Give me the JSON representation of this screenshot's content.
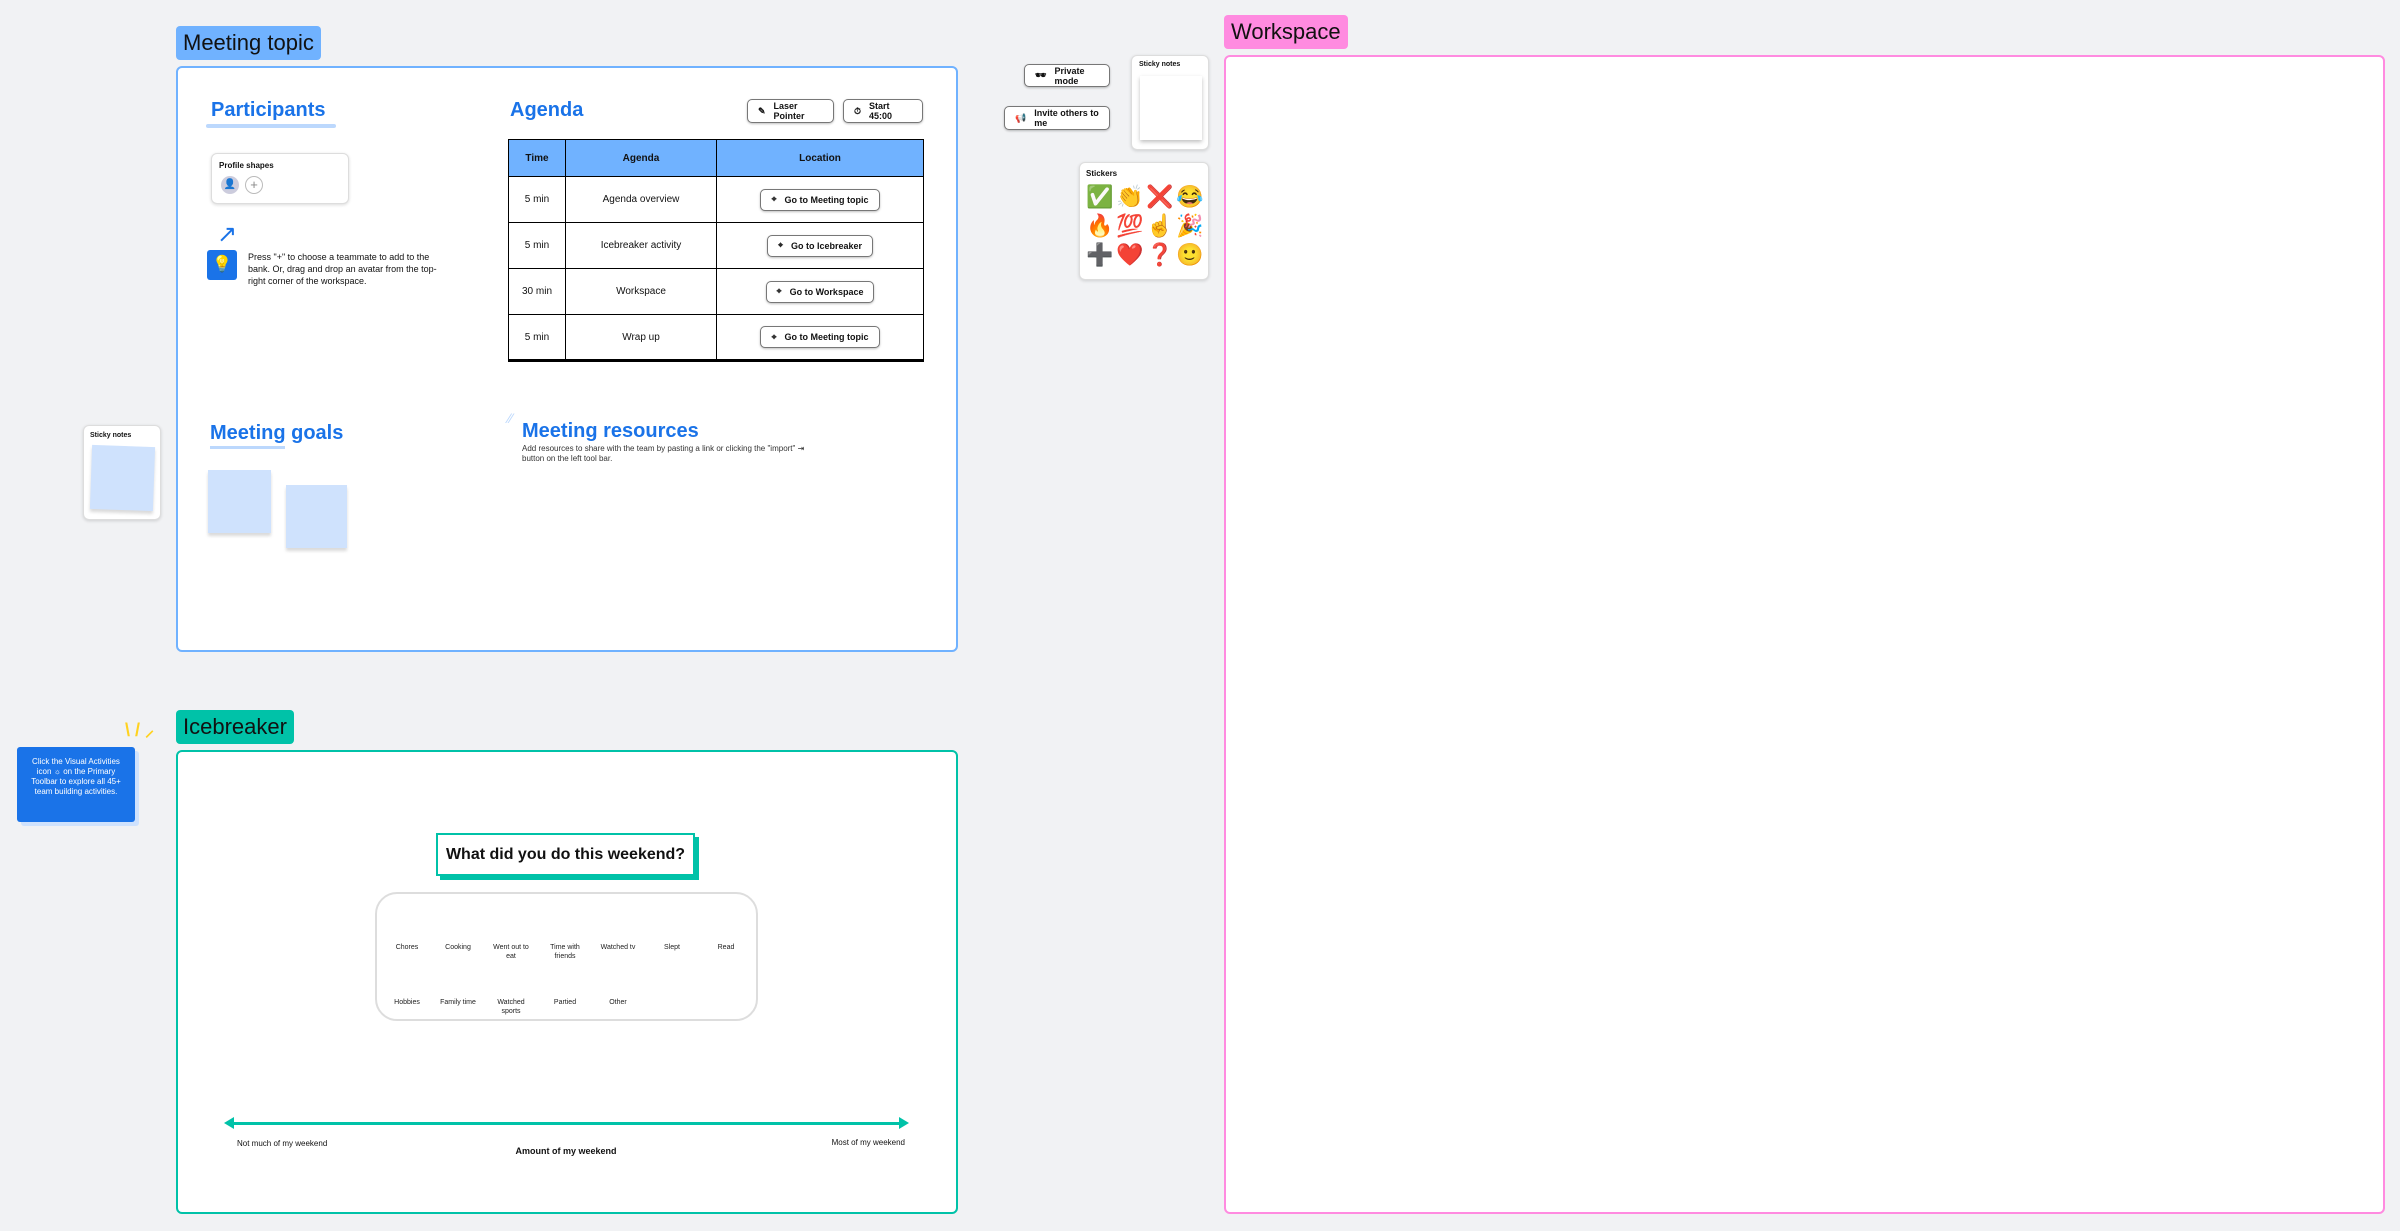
{
  "frames": {
    "meeting_topic": "Meeting topic",
    "workspace": "Workspace",
    "icebreaker": "Icebreaker"
  },
  "colors": {
    "meeting_topic": "#70b2ff",
    "workspace": "#ff8be0",
    "icebreaker": "#00c2a8",
    "heading": "#1a73e8"
  },
  "participants": {
    "title": "Participants",
    "profile_shapes": "Profile shapes",
    "hint": "Press \"+\" to choose a teammate to add to the bank. Or, drag and drop an avatar from the top-right corner of the workspace."
  },
  "agenda": {
    "title": "Agenda",
    "laser_pointer": "Laser Pointer",
    "timer": "Start 45:00",
    "headers": [
      "Time",
      "Agenda",
      "Location"
    ],
    "rows": [
      {
        "time": "5 min",
        "item": "Agenda overview",
        "location": "Go to Meeting topic"
      },
      {
        "time": "5 min",
        "item": "Icebreaker activity",
        "location": "Go to Icebreaker"
      },
      {
        "time": "30 min",
        "item": "Workspace",
        "location": "Go to Workspace"
      },
      {
        "time": "5 min",
        "item": "Wrap up",
        "location": "Go to Meeting topic"
      }
    ]
  },
  "meeting_goals": {
    "title": "Meeting goals"
  },
  "meeting_resources": {
    "title": "Meeting resources",
    "description": "Add resources to share with the team by pasting a link or clicking the \"import\" ⇥ button on the left tool bar."
  },
  "sticky_notes_label": "Sticky notes",
  "toolbar": {
    "private_mode": "Private mode",
    "invite": "Invite others to me"
  },
  "stickers": {
    "title": "Stickers",
    "items": [
      "✅",
      "👏",
      "❌",
      "😂",
      "🔥",
      "💯",
      "☝️",
      "🎉",
      "➕",
      "❤️",
      "❓",
      "🙂"
    ]
  },
  "tip": "Click the Visual Activities icon ☼ on the Primary Toolbar to explore all 45+ team building activities.",
  "icebreaker": {
    "question": "What did you do this weekend?",
    "options_row1": [
      "Chores",
      "Cooking",
      "Went out to eat",
      "Time with friends",
      "Watched tv",
      "Slept",
      "Read"
    ],
    "options_row2": [
      "Hobbies",
      "Family time",
      "Watched sports",
      "Partied",
      "Other"
    ],
    "axis_left": "Not much of my weekend",
    "axis_right": "Most of my weekend",
    "axis_title": "Amount of my weekend"
  }
}
